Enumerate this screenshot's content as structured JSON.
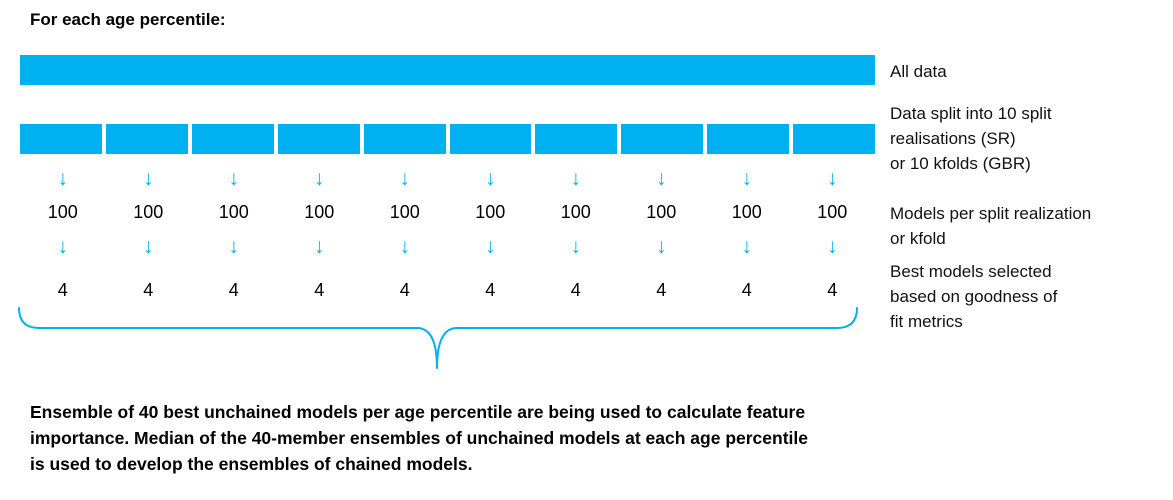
{
  "colors": {
    "accent": "#00B0F0"
  },
  "icons": {
    "down_arrow": "↓"
  },
  "title": "For each age percentile:",
  "diagram": {
    "num_splits": 10,
    "columns": [
      {
        "models_per_split": "100",
        "best_selected": "4"
      },
      {
        "models_per_split": "100",
        "best_selected": "4"
      },
      {
        "models_per_split": "100",
        "best_selected": "4"
      },
      {
        "models_per_split": "100",
        "best_selected": "4"
      },
      {
        "models_per_split": "100",
        "best_selected": "4"
      },
      {
        "models_per_split": "100",
        "best_selected": "4"
      },
      {
        "models_per_split": "100",
        "best_selected": "4"
      },
      {
        "models_per_split": "100",
        "best_selected": "4"
      },
      {
        "models_per_split": "100",
        "best_selected": "4"
      },
      {
        "models_per_split": "100",
        "best_selected": "4"
      }
    ]
  },
  "side_labels": {
    "all_data": "All data",
    "split": "Data split into 10 split\nrealisations (SR)\nor 10 kfolds (GBR)",
    "models": "Models per split realization\n or kfold",
    "best": "Best models selected\nbased on goodness of\nfit metrics"
  },
  "footer": "Ensemble of 40 best unchained models per age percentile are being used to calculate feature\nimportance. Median of the 40-member ensembles of unchained models at each age percentile\nis used to develop the ensembles of chained models."
}
